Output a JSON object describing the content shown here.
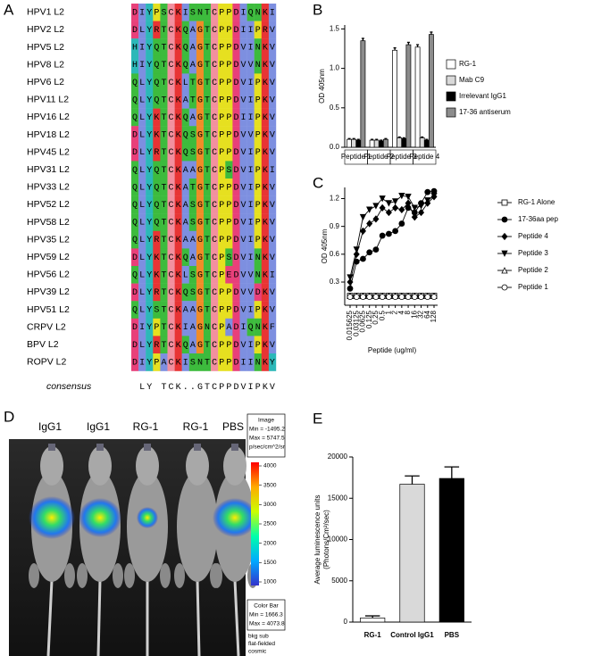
{
  "panels": [
    "A",
    "B",
    "C",
    "D",
    "E"
  ],
  "alignment": {
    "rows": [
      {
        "name": "HPV1 L2",
        "seq": "DIYPSCKISNTCPPDIQNKI"
      },
      {
        "name": "HPV2 L2",
        "seq": "DLYRTCKQAGTCPPDIIPRV"
      },
      {
        "name": "HPV5 L2",
        "seq": "HIYQTCKQAGTCPPDVINKV"
      },
      {
        "name": "HPV8 L2",
        "seq": "HIYQTCKQAGTCPPDVVNKV"
      },
      {
        "name": "HPV6 L2",
        "seq": "QLYQTCKLTGTCPPDVIPKV"
      },
      {
        "name": "HPV11 L2",
        "seq": "QLYQTCKATGTCPPDVIPKV"
      },
      {
        "name": "HPV16 L2",
        "seq": "QLYKTCKQAGTCPPDIIPKV"
      },
      {
        "name": "HPV18 L2",
        "seq": "DLYKTCKQSGTCPPDVVPKV"
      },
      {
        "name": "HPV45 L2",
        "seq": "DLYRTCKQSGTCPPDVIPKV"
      },
      {
        "name": "HPV31 L2",
        "seq": "QLYQTCKAAGTCPSDVIPKI"
      },
      {
        "name": "HPV33 L2",
        "seq": "QLYQTCKATGTCPPDVIPKV"
      },
      {
        "name": "HPV52 L2",
        "seq": "QLYQTCKASGTCPPDVIPKV"
      },
      {
        "name": "HPV58 L2",
        "seq": "QLYQTCKASGTCPPDVIPKV"
      },
      {
        "name": "HPV35 L2",
        "seq": "QLYRTCKAAGTCPPDVIPKV"
      },
      {
        "name": "HPV59 L2",
        "seq": "DLYKTCKQAGTCPSDVINKV"
      },
      {
        "name": "HPV56 L2",
        "seq": "QLYKTCKLSGTCPEDVVNKI"
      },
      {
        "name": "HPV39 L2",
        "seq": "DLYRTCKQSGTCPPDVVDKV"
      },
      {
        "name": "HPV51 L2",
        "seq": "QLYSTCKAAGTCPPDVIPKV"
      },
      {
        "name": "CRPV L2",
        "seq": "DIYPTCKIAGNCPADIQNKF"
      },
      {
        "name": "BPV L2",
        "seq": "DLYRTCKQAGTCPPDVIPKV"
      },
      {
        "name": "ROPV L2",
        "seq": "DIYPACKISNTCPPDIINKY"
      }
    ],
    "consensus_label": "consensus",
    "consensus": " LY TCK..GTCPPDVIPKV"
  },
  "chart_data": [
    {
      "type": "bar",
      "ylabel": "OD 405nm",
      "categories": [
        "Peptide 1",
        "Peptide 2",
        "Peptide 3",
        "Peptide 4"
      ],
      "series": [
        {
          "name": "RG-1",
          "color": "#ffffff",
          "values": [
            0.1,
            0.09,
            1.23,
            1.27
          ],
          "errors": [
            0.01,
            0.01,
            0.03,
            0.03
          ]
        },
        {
          "name": "Mab C9",
          "color": "#d9d9d9",
          "values": [
            0.1,
            0.09,
            0.12,
            0.12
          ],
          "errors": [
            0.01,
            0.01,
            0.01,
            0.01
          ]
        },
        {
          "name": "Irrelevant IgG1",
          "color": "#000000",
          "values": [
            0.09,
            0.08,
            0.11,
            0.09
          ],
          "errors": [
            0.01,
            0.01,
            0.01,
            0.01
          ]
        },
        {
          "name": "17-36 antiserum",
          "color": "#8c8c8c",
          "values": [
            1.35,
            0.1,
            1.3,
            1.43
          ],
          "errors": [
            0.03,
            0.01,
            0.03,
            0.03
          ]
        }
      ],
      "ylim": [
        0,
        1.55
      ],
      "yticks": [
        {
          "value": 0,
          "label": "0.0"
        },
        0.5,
        {
          "value": 1,
          "label": "1.0"
        },
        1.5
      ]
    },
    {
      "type": "line",
      "xlabel": "Peptide (ug/ml)",
      "ylabel": "OD 405nm",
      "xscale": "log",
      "x": [
        0.015625,
        0.03125,
        0.0625,
        0.125,
        0.25,
        0.5,
        1,
        2,
        4,
        8,
        16,
        32,
        64,
        128
      ],
      "xlim": [
        0.015625,
        128
      ],
      "xticks": [
        0.015625,
        0.03125,
        0.0625,
        0.125,
        0.25,
        0.5,
        1,
        2,
        4,
        8,
        16,
        32,
        64,
        128
      ],
      "ylim": [
        0.05,
        1.32
      ],
      "yticks": [
        0.3,
        0.6,
        0.9,
        1.2
      ],
      "series": [
        {
          "name": "RG-1 Alone",
          "color": "#000000",
          "marker": "square",
          "filled": false,
          "values": [
            0.15,
            0.15,
            0.15,
            0.15,
            0.15,
            0.15,
            0.15,
            0.15,
            0.15,
            0.15,
            0.15,
            0.15,
            0.15,
            0.15
          ]
        },
        {
          "name": "17-36aa pep",
          "color": "#000000",
          "marker": "circle",
          "filled": true,
          "values": [
            0.23,
            0.52,
            0.55,
            0.62,
            0.65,
            0.8,
            0.82,
            0.85,
            0.93,
            1.1,
            1.05,
            1.15,
            1.27,
            1.28
          ]
        },
        {
          "name": "Peptide 4",
          "color": "#000000",
          "marker": "diamond",
          "filled": true,
          "values": [
            0.3,
            0.6,
            0.85,
            0.93,
            0.98,
            1.1,
            1.05,
            1.1,
            1.08,
            1.15,
            1.0,
            1.05,
            1.15,
            1.22
          ]
        },
        {
          "name": "Peptide 3",
          "color": "#000000",
          "marker": "triangle-down",
          "filled": true,
          "values": [
            0.35,
            0.65,
            1.0,
            1.08,
            1.12,
            1.2,
            1.15,
            1.17,
            1.23,
            1.22,
            1.1,
            1.12,
            1.18,
            1.23
          ]
        },
        {
          "name": "Peptide 2",
          "color": "#000000",
          "marker": "triangle",
          "filled": false,
          "values": [
            0.15,
            0.15,
            0.15,
            0.15,
            0.15,
            0.15,
            0.15,
            0.15,
            0.15,
            0.15,
            0.15,
            0.15,
            0.15,
            0.15
          ]
        },
        {
          "name": "Peptide 1",
          "color": "#000000",
          "marker": "circle",
          "filled": false,
          "values": [
            0.14,
            0.14,
            0.14,
            0.14,
            0.14,
            0.14,
            0.14,
            0.14,
            0.14,
            0.14,
            0.14,
            0.14,
            0.14,
            0.14
          ]
        }
      ]
    },
    {
      "type": "bar",
      "ylabel": [
        "Average luminescence units",
        "(Photons/Cm²/sec)"
      ],
      "categories": [
        "RG-1",
        "Control IgG1",
        "PBS"
      ],
      "values": [
        500,
        16700,
        17400
      ],
      "errors": [
        250,
        1000,
        1400
      ],
      "colors": [
        "#ffffff",
        "#d9d9d9",
        "#000000"
      ],
      "ylim": [
        0,
        20000
      ],
      "yticks": [
        0,
        5000,
        10000,
        15000,
        20000
      ]
    }
  ],
  "image": {
    "labels": [
      "IgG1",
      "IgG1",
      "RG-1",
      "RG-1",
      "PBS"
    ],
    "info": [
      "Image",
      "Min = -1495.2",
      "Max = 5747.5",
      "p/sec/cm^2/sr"
    ],
    "colorbar_ticks": [
      4000,
      3500,
      3000,
      2500,
      2000,
      1500,
      1000
    ],
    "colorbar_info": [
      "Color Bar",
      "Min = 1666.3",
      "Max = 4073.8"
    ],
    "notes": [
      "bkg sub",
      "flat-fielded",
      "cosmic"
    ]
  }
}
